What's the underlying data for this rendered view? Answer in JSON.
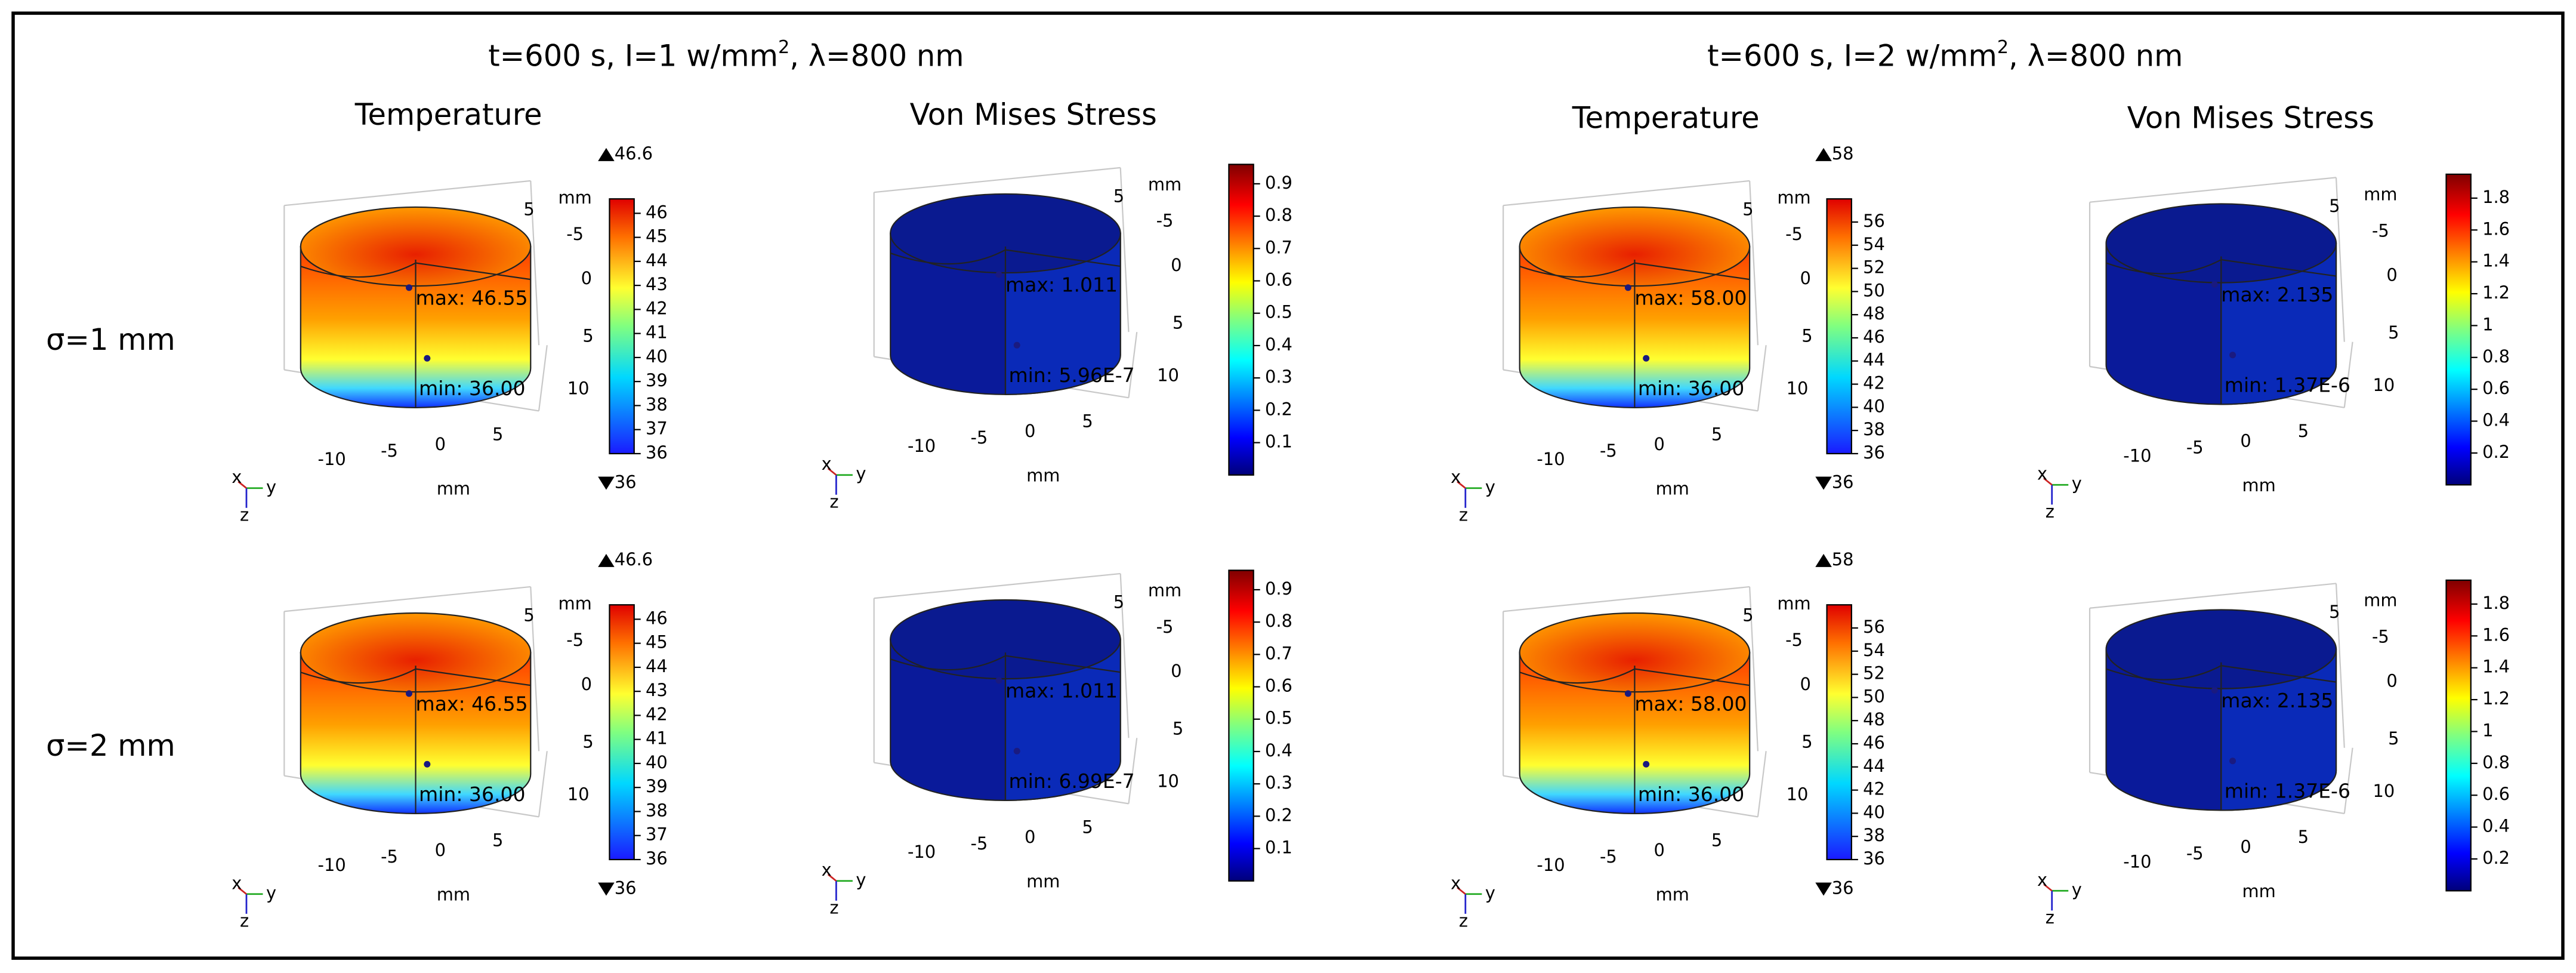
{
  "groups": [
    {
      "title": {
        "pre": "t=600 s, I=1 w/mm",
        "sup": "2",
        "post": ", λ=800 nm"
      }
    },
    {
      "title": {
        "pre": "t=600 s, I=2 w/mm",
        "sup": "2",
        "post": ", λ=800 nm"
      }
    }
  ],
  "columns": [
    "Temperature",
    "Von Mises Stress",
    "Temperature",
    "Von Mises Stress"
  ],
  "axes": {
    "right": [
      "5",
      "-5",
      "0",
      "5",
      "10"
    ],
    "bottom": [
      "-10",
      "-5",
      "0",
      "5"
    ],
    "unit": "mm",
    "triad": [
      "x",
      "y",
      "z"
    ]
  },
  "rows": [
    {
      "label": "σ=1 mm",
      "panels": [
        {
          "kind": "temperature",
          "max": "max: 46.55",
          "min": "min: 36.00",
          "colorbar": {
            "limits_shown": true,
            "range": [
              36,
              46.6
            ],
            "ticks": [
              36,
              37,
              38,
              39,
              40,
              41,
              42,
              43,
              44,
              45,
              46
            ]
          }
        },
        {
          "kind": "stress",
          "max": "max: 1.011",
          "min": "min: 5.96E-7",
          "colorbar": {
            "limits_shown": false,
            "range": [
              0,
              0.96
            ],
            "ticks": [
              0.1,
              0.2,
              0.3,
              0.4,
              0.5,
              0.6,
              0.7,
              0.8,
              0.9
            ]
          }
        },
        {
          "kind": "temperature",
          "max": "max: 58.00",
          "min": "min: 36.00",
          "colorbar": {
            "limits_shown": true,
            "range": [
              36,
              58
            ],
            "ticks": [
              36,
              38,
              40,
              42,
              44,
              46,
              48,
              50,
              52,
              54,
              56
            ]
          }
        },
        {
          "kind": "stress",
          "max": "max: 2.135",
          "min": "min: 1.37E-6",
          "colorbar": {
            "limits_shown": false,
            "range": [
              0,
              1.95
            ],
            "ticks": [
              0.2,
              0.4,
              0.6,
              0.8,
              1,
              1.2,
              1.4,
              1.6,
              1.8
            ]
          }
        }
      ]
    },
    {
      "label": "σ=2 mm",
      "panels": [
        {
          "kind": "temperature",
          "max": "max: 46.55",
          "min": "min: 36.00",
          "colorbar": {
            "limits_shown": true,
            "range": [
              36,
              46.6
            ],
            "ticks": [
              36,
              37,
              38,
              39,
              40,
              41,
              42,
              43,
              44,
              45,
              46
            ]
          }
        },
        {
          "kind": "stress",
          "max": "max: 1.011",
          "min": "min: 6.99E-7",
          "colorbar": {
            "limits_shown": false,
            "range": [
              0,
              0.96
            ],
            "ticks": [
              0.1,
              0.2,
              0.3,
              0.4,
              0.5,
              0.6,
              0.7,
              0.8,
              0.9
            ]
          }
        },
        {
          "kind": "temperature",
          "max": "max: 58.00",
          "min": "min: 36.00",
          "colorbar": {
            "limits_shown": true,
            "range": [
              36,
              58
            ],
            "ticks": [
              36,
              38,
              40,
              42,
              44,
              46,
              48,
              50,
              52,
              54,
              56
            ]
          }
        },
        {
          "kind": "stress",
          "max": "max: 2.135",
          "min": "min: 1.37E-6",
          "colorbar": {
            "limits_shown": false,
            "range": [
              0,
              1.95
            ],
            "ticks": [
              0.2,
              0.4,
              0.6,
              0.8,
              1,
              1.2,
              1.4,
              1.6,
              1.8
            ]
          }
        }
      ]
    }
  ]
}
